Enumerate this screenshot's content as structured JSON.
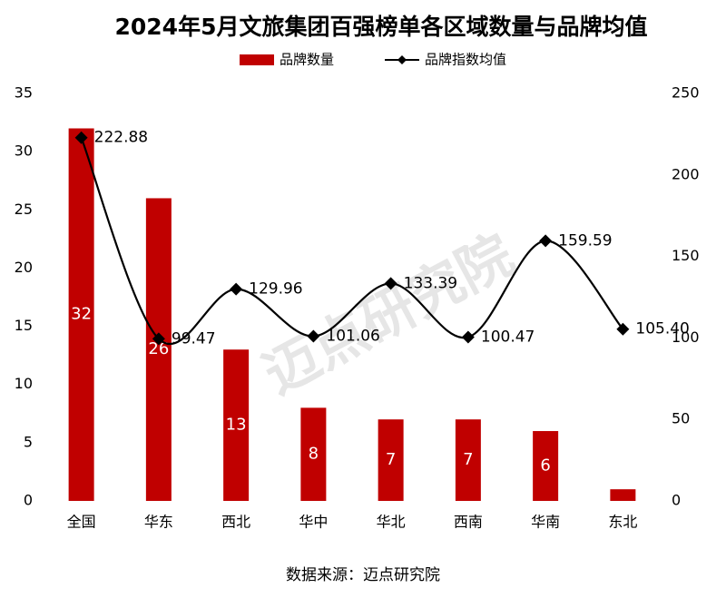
{
  "chart_data": {
    "type": "bar_line",
    "title": "2024年5月文旅集团百强榜单各区域数量与品牌均值",
    "categories": [
      "全国",
      "华东",
      "西北",
      "华中",
      "华北",
      "西南",
      "华南",
      "东北"
    ],
    "series": [
      {
        "name": "品牌数量",
        "type": "bar",
        "color": "#c00000",
        "values": [
          32,
          26,
          13,
          8,
          7,
          7,
          6,
          1
        ],
        "value_labels": [
          "32",
          "26",
          "13",
          "8",
          "7",
          "7",
          "6",
          null
        ]
      },
      {
        "name": "品牌指数均值",
        "type": "line",
        "axis": "y2",
        "color": "#000000",
        "smooth": true,
        "values": [
          222.88,
          99.47,
          129.96,
          101.06,
          133.39,
          100.47,
          159.59,
          105.4
        ],
        "value_labels": [
          "222.88",
          "99.47",
          "129.96",
          "101.06",
          "133.39",
          "100.47",
          "159.59",
          "105.40"
        ]
      }
    ],
    "ylim": [
      0,
      35
    ],
    "yticks": [
      0,
      5,
      10,
      15,
      20,
      25,
      30,
      35
    ],
    "y2lim": [
      0,
      250
    ],
    "y2ticks": [
      0,
      50,
      100,
      150,
      200,
      250
    ],
    "grid": false,
    "legend": "top",
    "watermark": "迈点研究院",
    "source": "数据来源：迈点研究院"
  }
}
